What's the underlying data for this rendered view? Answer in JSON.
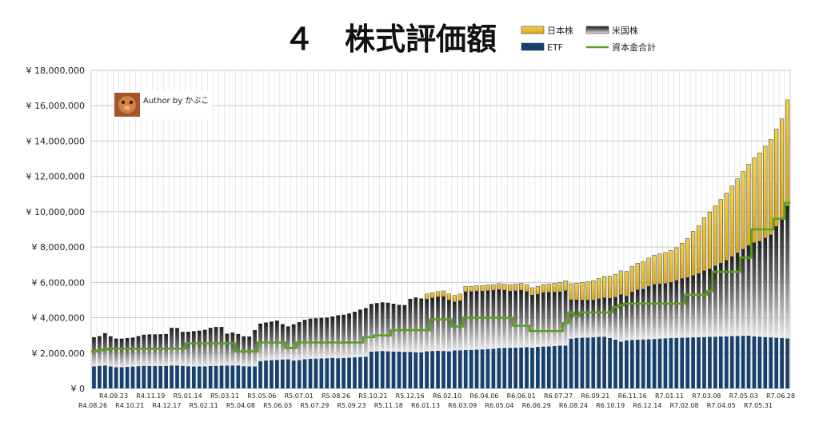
{
  "chart_data": {
    "type": "bar",
    "title": "４　株式評価額",
    "subtitle": "",
    "xlabel": "",
    "ylabel": "",
    "ylim": [
      0,
      18000000
    ],
    "yticks": [
      0,
      2000000,
      4000000,
      6000000,
      8000000,
      10000000,
      12000000,
      14000000,
      16000000,
      18000000
    ],
    "ytick_labels": [
      "¥ 0",
      "¥ 2,000,000",
      "¥ 4,000,000",
      "¥ 6,000,000",
      "¥ 8,000,000",
      "¥ 10,000,000",
      "¥ 12,000,000",
      "¥ 14,000,000",
      "¥ 16,000,000",
      "¥ 18,000,000"
    ],
    "grid": true,
    "legend_position": "top-right",
    "stacked": true,
    "n_periods": 126,
    "x_tick_labels_upper": [
      "R4.09.23",
      "R4.11.19",
      "R5.01.14",
      "R5.03.11",
      "R5.05.06",
      "R5.07.01",
      "R5.08.26",
      "R5.10.21",
      "R5.12.16",
      "R6.02.10",
      "R6.04.06",
      "R6.06.01",
      "R6.07.27",
      "R6.09.21",
      "R6.11.16",
      "R7.01.11",
      "R7.03.08",
      "R7.05.03",
      "R7.06.28"
    ],
    "x_tick_labels_lower": [
      "R4.08.26",
      "R4.10.21",
      "R4.12.17",
      "R5.02.11",
      "R5.04.08",
      "R5.06.03",
      "R5.07.29",
      "R5.09.23",
      "R5.11.18",
      "R6.01.13",
      "R6.03.09",
      "R6.05.04",
      "R6.06.29",
      "R6.08.24",
      "R6.10.19",
      "R6.12.14",
      "R7.02.08",
      "R7.04.05",
      "R7.05.31"
    ],
    "series": [
      {
        "name": "ETF",
        "kind": "bar",
        "color": "#17406d",
        "values": [
          1250000,
          1280000,
          1300000,
          1250000,
          1200000,
          1200000,
          1220000,
          1240000,
          1260000,
          1280000,
          1270000,
          1270000,
          1270000,
          1280000,
          1300000,
          1300000,
          1280000,
          1260000,
          1240000,
          1250000,
          1250000,
          1270000,
          1280000,
          1290000,
          1290000,
          1300000,
          1300000,
          1260000,
          1250000,
          1250000,
          1550000,
          1580000,
          1600000,
          1620000,
          1640000,
          1650000,
          1580000,
          1600000,
          1660000,
          1680000,
          1690000,
          1700000,
          1710000,
          1730000,
          1710000,
          1720000,
          1740000,
          1760000,
          1780000,
          1800000,
          2080000,
          2100000,
          2120000,
          2100000,
          2090000,
          2080000,
          2070000,
          2070000,
          2050000,
          2040000,
          2100000,
          2120000,
          2130000,
          2120000,
          2100000,
          2150000,
          2160000,
          2170000,
          2180000,
          2200000,
          2210000,
          2230000,
          2250000,
          2280000,
          2300000,
          2300000,
          2310000,
          2320000,
          2330000,
          2310000,
          2350000,
          2370000,
          2380000,
          2400000,
          2420000,
          2430000,
          2820000,
          2860000,
          2870000,
          2880000,
          2900000,
          2920000,
          2930000,
          2850000,
          2760000,
          2650000,
          2720000,
          2750000,
          2760000,
          2770000,
          2780000,
          2800000,
          2820000,
          2840000,
          2850000,
          2860000,
          2870000,
          2880000,
          2890000,
          2900000,
          2910000,
          2920000,
          2930000,
          2940000,
          2950000,
          2960000,
          2970000,
          2980000,
          2990000,
          2950000,
          2930000,
          2910000,
          2890000,
          2870000,
          2850000,
          2830000
        ]
      },
      {
        "name": "米国株",
        "kind": "bar",
        "color": "#4a4a4a",
        "values": [
          1650000,
          1680000,
          1830000,
          1700000,
          1620000,
          1620000,
          1630000,
          1640000,
          1700000,
          1760000,
          1790000,
          1790000,
          1800000,
          1800000,
          2130000,
          2120000,
          1920000,
          1950000,
          2000000,
          2020000,
          2070000,
          2160000,
          2200000,
          2190000,
          1810000,
          1860000,
          1780000,
          1690000,
          1690000,
          2050000,
          2120000,
          2150000,
          2180000,
          2220000,
          2000000,
          1860000,
          2050000,
          2150000,
          2220000,
          2270000,
          2280000,
          2290000,
          2300000,
          2340000,
          2430000,
          2450000,
          2500000,
          2580000,
          2680000,
          2750000,
          2700000,
          2730000,
          2750000,
          2750000,
          2700000,
          2650000,
          2650000,
          3000000,
          3100000,
          3050000,
          2950000,
          3000000,
          3050000,
          3080000,
          2900000,
          2750000,
          2800000,
          3300000,
          3300000,
          3310000,
          3290000,
          3300000,
          3300000,
          3310000,
          3250000,
          3200000,
          3210000,
          3230000,
          3150000,
          2970000,
          2980000,
          3050000,
          3060000,
          3050000,
          3050000,
          3100000,
          2200000,
          2150000,
          2130000,
          2120000,
          2100000,
          2150000,
          2200000,
          2250000,
          2400000,
          2650000,
          2500000,
          2700000,
          2820000,
          2850000,
          3000000,
          3080000,
          3100000,
          3100000,
          3150000,
          3250000,
          3350000,
          3400000,
          3500000,
          3600000,
          3750000,
          3850000,
          4000000,
          4150000,
          4300000,
          4500000,
          4700000,
          4900000,
          5100000,
          5300000,
          5400000,
          5600000,
          5800000,
          6300000,
          6800000,
          7500000
        ]
      },
      {
        "name": "日本株",
        "kind": "bar",
        "color": "#e8bf2a",
        "values": [
          0,
          0,
          0,
          0,
          0,
          0,
          0,
          0,
          0,
          0,
          0,
          0,
          0,
          0,
          0,
          0,
          0,
          0,
          0,
          0,
          0,
          0,
          0,
          0,
          0,
          0,
          0,
          0,
          0,
          0,
          0,
          0,
          0,
          0,
          0,
          0,
          0,
          0,
          0,
          0,
          0,
          0,
          0,
          0,
          0,
          0,
          0,
          0,
          0,
          0,
          0,
          0,
          0,
          0,
          0,
          0,
          0,
          0,
          0,
          0,
          300000,
          300000,
          300000,
          320000,
          350000,
          360000,
          380000,
          300000,
          300000,
          310000,
          320000,
          330000,
          330000,
          340000,
          350000,
          380000,
          380000,
          400000,
          400000,
          420000,
          450000,
          460000,
          480000,
          500000,
          520000,
          560000,
          900000,
          950000,
          1000000,
          1050000,
          1100000,
          1150000,
          1200000,
          1250000,
          1300000,
          1350000,
          1400000,
          1450000,
          1500000,
          1550000,
          1600000,
          1650000,
          1700000,
          1750000,
          1800000,
          1850000,
          2000000,
          2200000,
          2500000,
          2700000,
          3000000,
          3200000,
          3400000,
          3600000,
          3800000,
          4000000,
          4200000,
          4400000,
          4600000,
          4800000,
          5000000,
          5200000,
          5400000,
          5500000,
          5600000,
          6000000
        ]
      },
      {
        "name": "資本金合計",
        "kind": "line",
        "color": "#5aa023",
        "values": [
          2100000,
          2150000,
          2200000,
          2250000,
          2250000,
          2250000,
          2250000,
          2250000,
          2250000,
          2250000,
          2250000,
          2250000,
          2250000,
          2250000,
          2250000,
          2250000,
          2250000,
          2550000,
          2550000,
          2550000,
          2550000,
          2550000,
          2550000,
          2550000,
          2550000,
          2550000,
          2100000,
          2100000,
          2100000,
          2100000,
          2600000,
          2600000,
          2600000,
          2600000,
          2600000,
          2300000,
          2300000,
          2600000,
          2600000,
          2600000,
          2600000,
          2600000,
          2600000,
          2600000,
          2600000,
          2600000,
          2600000,
          2600000,
          2600000,
          2900000,
          2900000,
          3000000,
          3000000,
          3000000,
          3300000,
          3300000,
          3300000,
          3300000,
          3300000,
          3300000,
          3300000,
          3900000,
          3900000,
          3900000,
          3900000,
          3500000,
          3500000,
          4000000,
          4000000,
          4000000,
          4000000,
          4000000,
          4000000,
          4000000,
          4000000,
          4000000,
          3550000,
          3550000,
          3550000,
          3250000,
          3250000,
          3250000,
          3250000,
          3250000,
          3250000,
          3700000,
          4300000,
          4100000,
          4300000,
          4300000,
          4300000,
          4300000,
          4300000,
          4300000,
          4600000,
          4700000,
          4800000,
          4800000,
          4800000,
          4800000,
          4800000,
          4800000,
          4800000,
          4800000,
          4800000,
          4800000,
          4800000,
          5300000,
          5300000,
          5300000,
          5300000,
          5500000,
          6600000,
          6600000,
          6600000,
          6600000,
          6600000,
          7400000,
          7400000,
          9000000,
          9000000,
          9000000,
          9000000,
          9600000,
          9600000,
          10500000
        ]
      }
    ]
  },
  "annotation": {
    "text": "Author by かぶこ"
  },
  "colors": {
    "etf": "#17406d",
    "us": "#4a4a4a",
    "jp": "#e8bf2a",
    "line": "#5aa023",
    "grid": "#c8c8c8"
  }
}
